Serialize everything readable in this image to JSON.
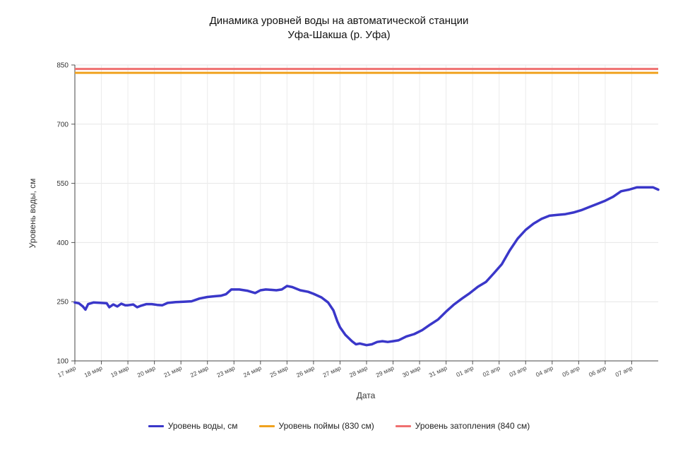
{
  "chart_data": {
    "type": "line",
    "title_line1": "Динамика уровней воды на автоматической станции",
    "title_line2": "Уфа-Шакша (р. Уфа)",
    "xlabel": "Дата",
    "ylabel": "Уровень воды, см",
    "ylim": [
      100,
      850
    ],
    "yticks": [
      100,
      250,
      400,
      550,
      700,
      850
    ],
    "x_range_days": [
      0,
      22
    ],
    "x_ticks": [
      "17 мар",
      "18 мар",
      "19 мар",
      "20 мар",
      "21 мар",
      "22 мар",
      "23 мар",
      "24 мар",
      "25 мар",
      "26 мар",
      "27 мар",
      "28 мар",
      "29 мар",
      "30 мар",
      "31 мар",
      "01 апр",
      "02 апр",
      "03 апр",
      "04 апр",
      "05 апр",
      "06 апр",
      "07 апр"
    ],
    "grid": true,
    "legend_position": "bottom",
    "series": [
      {
        "name": "Уровень воды, см",
        "color": "#3a37c9",
        "x": [
          0,
          0.15,
          0.3,
          0.4,
          0.5,
          0.7,
          1.0,
          1.2,
          1.3,
          1.45,
          1.6,
          1.75,
          1.9,
          2.0,
          2.2,
          2.35,
          2.5,
          2.7,
          2.9,
          3.1,
          3.3,
          3.5,
          3.8,
          4.1,
          4.4,
          4.7,
          5.0,
          5.3,
          5.5,
          5.7,
          5.9,
          6.2,
          6.5,
          6.8,
          7.0,
          7.2,
          7.4,
          7.6,
          7.8,
          8.0,
          8.2,
          8.5,
          8.8,
          9.0,
          9.3,
          9.55,
          9.75,
          9.9,
          10.0,
          10.2,
          10.45,
          10.6,
          10.75,
          11.0,
          11.2,
          11.4,
          11.6,
          11.8,
          12.0,
          12.2,
          12.5,
          12.8,
          13.1,
          13.4,
          13.7,
          14.0,
          14.3,
          14.6,
          14.9,
          15.2,
          15.5,
          15.8,
          16.1,
          16.4,
          16.7,
          17.0,
          17.3,
          17.6,
          17.9,
          18.2,
          18.5,
          18.8,
          19.1,
          19.4,
          19.7,
          20.0,
          20.3,
          20.6,
          20.9,
          21.2,
          21.5,
          21.8,
          22.0
        ],
        "y": [
          248,
          246,
          238,
          230,
          244,
          248,
          247,
          246,
          236,
          243,
          238,
          245,
          241,
          241,
          243,
          236,
          240,
          244,
          244,
          242,
          241,
          247,
          249,
          250,
          251,
          258,
          262,
          264,
          265,
          269,
          281,
          281,
          278,
          272,
          279,
          281,
          280,
          279,
          281,
          290,
          287,
          279,
          275,
          270,
          261,
          248,
          228,
          200,
          185,
          166,
          150,
          142,
          144,
          140,
          142,
          148,
          150,
          148,
          150,
          152,
          162,
          168,
          178,
          192,
          205,
          225,
          243,
          258,
          272,
          288,
          300,
          322,
          345,
          380,
          410,
          432,
          448,
          460,
          468,
          470,
          472,
          476,
          482,
          490,
          498,
          506,
          516,
          530,
          534,
          540,
          540,
          540,
          534
        ]
      },
      {
        "name": "Уровень поймы (830 см)",
        "color": "#f0a21e",
        "value": 830
      },
      {
        "name": "Уровень затопления (840 см)",
        "color": "#ef7070",
        "value": 840
      }
    ]
  }
}
